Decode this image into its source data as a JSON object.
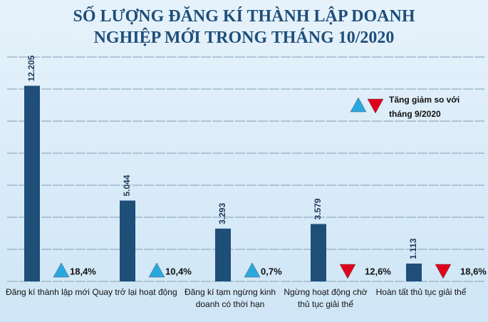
{
  "chart_data": {
    "type": "bar",
    "title": "SỐ LƯỢNG ĐĂNG KÍ THÀNH LẬP DOANH NGHIỆP MỚI TRONG THÁNG 10/2020",
    "categories": [
      "Đăng kí thành lập mới",
      "Quay trở lại hoạt động",
      "Đăng kí tạm ngừng kinh doanh có thời hạn",
      "Ngừng hoạt động chờ thủ tục giải thể",
      "Hoàn tất thủ tục giải thể"
    ],
    "values": [
      12205,
      5044,
      3293,
      3579,
      1113
    ],
    "value_labels": [
      "12.205",
      "5.044",
      "3.293",
      "3.579",
      "1.113"
    ],
    "color": "#1f4e79",
    "changes": [
      18.4,
      10.4,
      0.7,
      -12.6,
      -18.6
    ],
    "change_labels": [
      "18,4%",
      "10,4%",
      "0,7%",
      "12,6%",
      "18,6%"
    ],
    "legend_note": "Tăng giảm so với tháng 9/2020",
    "up_color": "#29a8e0",
    "down_color": "#e0001b",
    "ylim": [
      0,
      14000
    ],
    "yticks": [
      0,
      2000,
      4000,
      6000,
      8000,
      10000,
      12000,
      14000
    ],
    "grid": true
  }
}
